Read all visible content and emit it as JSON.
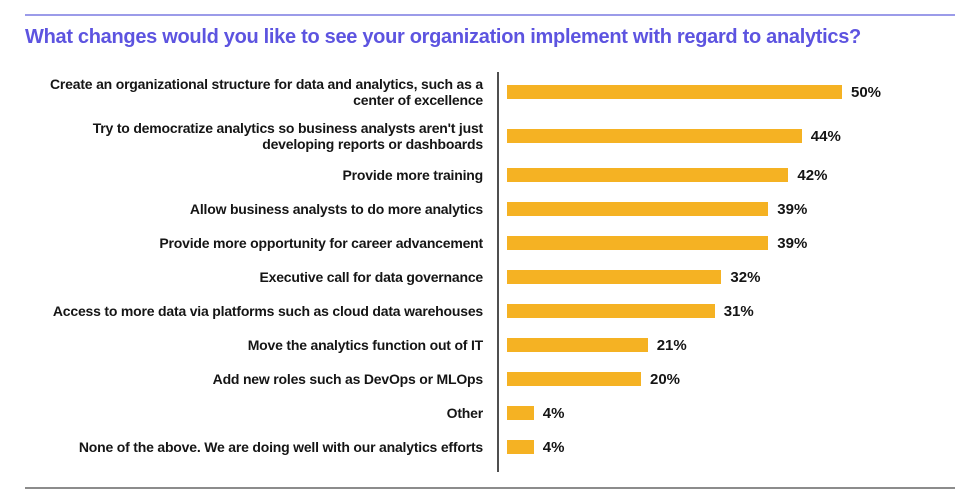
{
  "page": {
    "title": "What changes would you like to see your organization implement with regard to analytics?"
  },
  "colors": {
    "bar": "#F5B223",
    "title": "#5D54E0",
    "top_rule": "#9B9BE9",
    "bottom_rule": "#8C8C8C",
    "axis": "#4F4F4F",
    "text": "#151515"
  },
  "chart_data": {
    "type": "bar",
    "orientation": "horizontal",
    "title": "What changes would you like to see your organization implement with regard to analytics?",
    "xlabel": "",
    "ylabel": "",
    "xlim": [
      0,
      57
    ],
    "grid": false,
    "legend": false,
    "value_suffix": "%",
    "bar_color": "#F5B223",
    "categories": [
      "Create an organizational structure for data and analytics, such as a center of excellence",
      "Try to democratize analytics so business analysts aren't just developing reports or dashboards",
      "Provide more training",
      "Allow business analysts to do more analytics",
      "Provide more opportunity for career advancement",
      "Executive call for data governance",
      "Access to more data via platforms such as cloud data warehouses",
      "Move the analytics function out of IT",
      "Add new roles such as DevOps or MLOps",
      "Other",
      "None of the above.  We are doing well with our analytics efforts"
    ],
    "values": [
      50,
      44,
      42,
      39,
      39,
      32,
      31,
      21,
      20,
      4,
      4
    ]
  }
}
